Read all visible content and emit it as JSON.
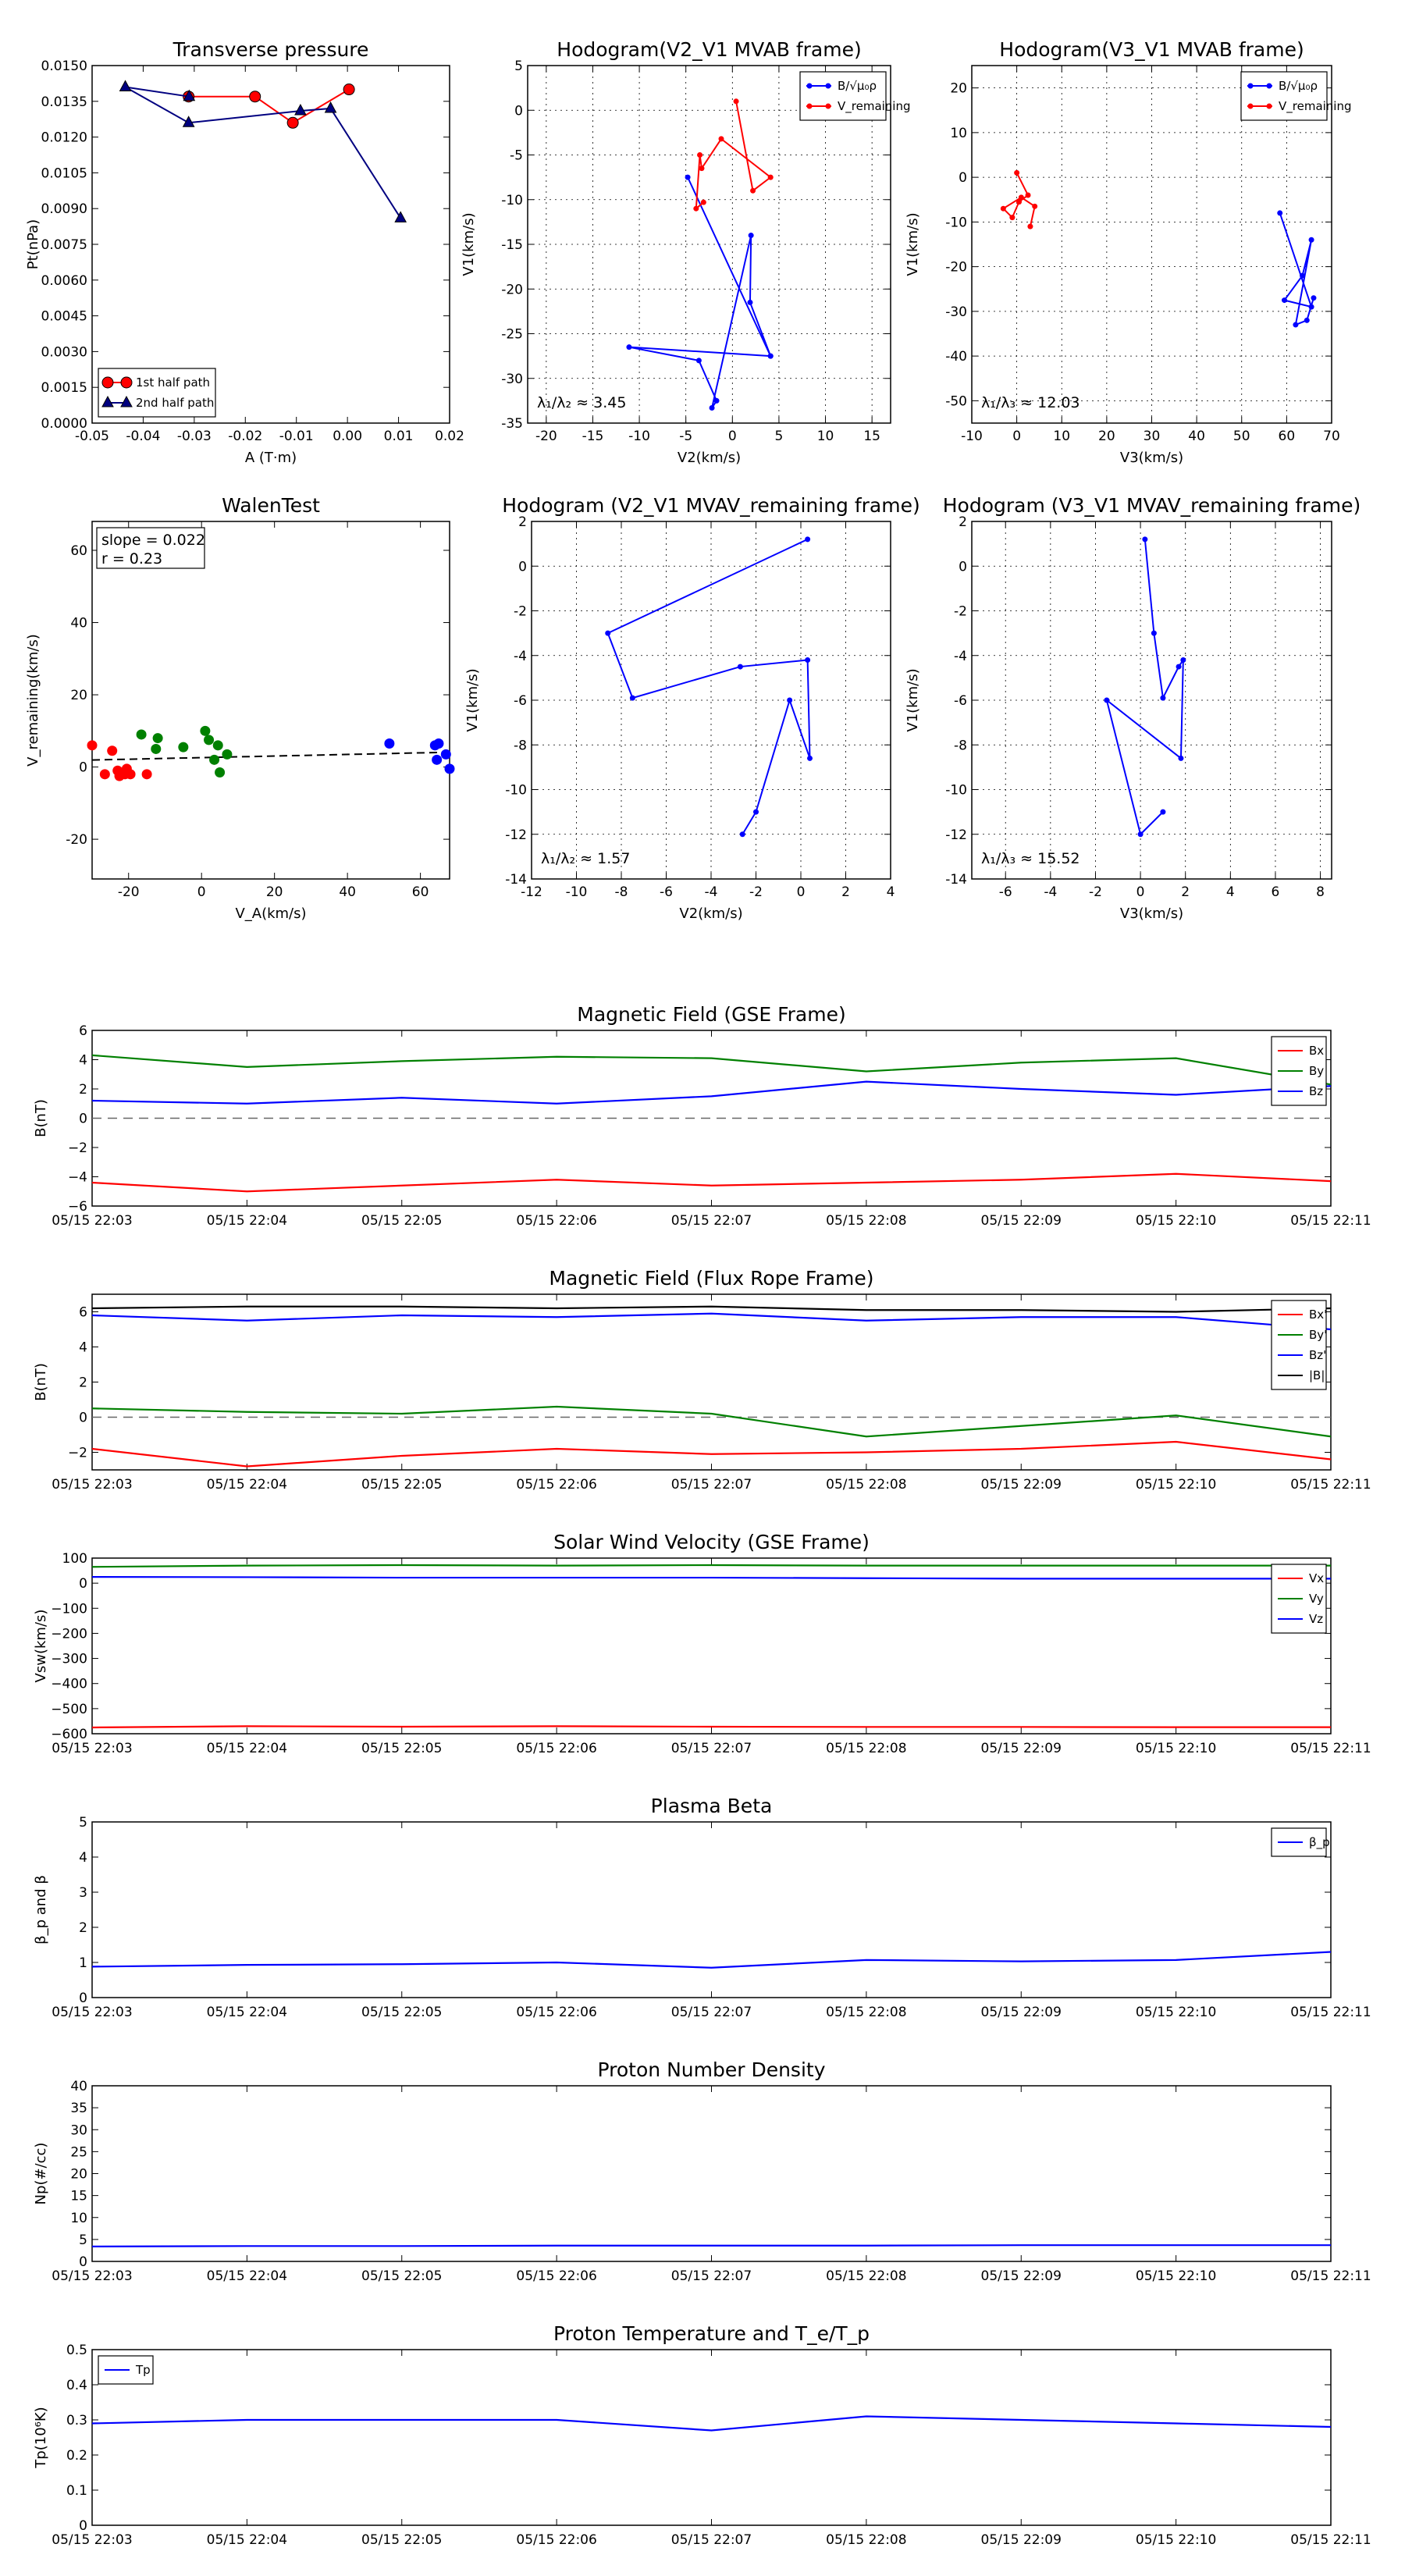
{
  "time_ticks": [
    "05/15 22:03",
    "05/15 22:04",
    "05/15 22:05",
    "05/15 22:06",
    "05/15 22:07",
    "05/15 22:08",
    "05/15 22:09",
    "05/15 22:10",
    "05/15 22:11"
  ],
  "colors": {
    "red": "#ff0000",
    "blue": "#0000ff",
    "green": "#008000",
    "black": "#000000",
    "navy": "#000080"
  },
  "chart_data": [
    {
      "id": "tp",
      "type": "line",
      "title": "Transverse pressure",
      "xlabel": "A (T·m)",
      "ylabel": "Pt(nPa)",
      "xlim": [
        -0.05,
        0.02
      ],
      "ylim": [
        0,
        0.015
      ],
      "xticks": [
        "-0.05",
        "-0.04",
        "-0.03",
        "-0.02",
        "-0.01",
        "0.00",
        "0.01",
        "0.02"
      ],
      "yticks": [
        "0.0000",
        "0.0015",
        "0.0030",
        "0.0045",
        "0.0060",
        "0.0075",
        "0.0090",
        "0.0105",
        "0.0120",
        "0.0135",
        "0.0150"
      ],
      "legend_position": "lower-left",
      "series": [
        {
          "name": "1st half path",
          "color": "red",
          "marker": "circle",
          "x": [
            0.0003,
            -0.0107,
            -0.0181,
            -0.0311
          ],
          "y": [
            0.014,
            0.0126,
            0.0137,
            0.0137
          ]
        },
        {
          "name": "2nd half path",
          "color": "navy",
          "marker": "triangle",
          "x": [
            -0.031,
            -0.0435,
            -0.0311,
            -0.0092,
            -0.0033,
            0.0104
          ],
          "y": [
            0.0137,
            0.0141,
            0.0126,
            0.0131,
            0.0132,
            0.0086
          ]
        }
      ]
    },
    {
      "id": "h1",
      "type": "line",
      "title": "Hodogram(V2_V1 MVAB frame)",
      "xlabel": "V2(km/s)",
      "ylabel": "V1(km/s)",
      "xlim": [
        -22,
        17
      ],
      "ylim": [
        -35,
        5
      ],
      "xticks": [
        "-20",
        "-15",
        "-10",
        "-5",
        "0",
        "5",
        "10",
        "15"
      ],
      "yticks": [
        "-35",
        "-30",
        "-25",
        "-20",
        "-15",
        "-10",
        "-5",
        "0",
        "5"
      ],
      "annotation": "λ₁/λ₂ ≈ 3.45",
      "legend_position": "top-right",
      "series": [
        {
          "name": "B/√μ₀ρ",
          "color": "blue",
          "x": [
            -4.8,
            4.1,
            -11.1,
            -3.6,
            -1.7,
            -2.2,
            2.0,
            1.9,
            4.1
          ],
          "y": [
            -7.5,
            -27.5,
            -26.5,
            -28.0,
            -32.5,
            -33.3,
            -14.0,
            -21.5,
            -27.5
          ]
        },
        {
          "name": "V_remaining",
          "color": "red",
          "x": [
            0.4,
            2.2,
            4.1,
            -1.2,
            -3.3,
            -3.5,
            -3.9,
            -3.1
          ],
          "y": [
            1.0,
            -9.0,
            -7.5,
            -3.2,
            -6.5,
            -5.0,
            -11.0,
            -10.3
          ]
        }
      ]
    },
    {
      "id": "h2",
      "type": "line",
      "title": "Hodogram(V3_V1 MVAB frame)",
      "xlabel": "V3(km/s)",
      "ylabel": "V1(km/s)",
      "xlim": [
        -10,
        70
      ],
      "ylim": [
        -55,
        25
      ],
      "xticks": [
        "-10",
        "0",
        "10",
        "20",
        "30",
        "40",
        "50",
        "60",
        "70"
      ],
      "yticks": [
        "-50",
        "-40",
        "-30",
        "-20",
        "-10",
        "0",
        "10",
        "20"
      ],
      "annotation": "λ₁/λ₃ ≈ 12.03",
      "legend_position": "top-right",
      "series": [
        {
          "name": "B/√μ₀ρ",
          "color": "blue",
          "x": [
            58.5,
            65.5,
            59.5,
            63.5,
            65.5,
            62.0,
            64.5,
            66.0
          ],
          "y": [
            -8.0,
            -29.0,
            -27.5,
            -22.0,
            -14.0,
            -33.0,
            -32.0,
            -27.0
          ]
        },
        {
          "name": "V_remaining",
          "color": "red",
          "x": [
            0.0,
            2.5,
            0.5,
            -1.0,
            -3.0,
            1.0,
            4.0,
            3.0
          ],
          "y": [
            1.0,
            -4.0,
            -5.5,
            -9.0,
            -7.0,
            -4.5,
            -6.5,
            -11.0
          ]
        }
      ]
    },
    {
      "id": "walen",
      "type": "scatter",
      "title": "WalenTest",
      "xlabel": "V_A(km/s)",
      "ylabel": "V_remaining(km/s)",
      "xlim": [
        -30,
        68
      ],
      "ylim": [
        -31,
        68
      ],
      "xticks": [
        "-20",
        "0",
        "20",
        "40",
        "60"
      ],
      "yticks": [
        "-20",
        "0",
        "20",
        "40",
        "60"
      ],
      "annotation_slope": "slope = 0.022",
      "annotation_r": "r = 0.23",
      "fit": {
        "slope": 0.022,
        "intercept": 2.6
      },
      "series": [
        {
          "color": "red",
          "x": [
            -30,
            -26.5,
            -24.5,
            -23.0,
            -22.5,
            -21.0,
            -20.5,
            -19.5,
            -15.0
          ],
          "y": [
            6.0,
            -2.0,
            4.5,
            -1.0,
            -2.5,
            -2.0,
            -0.5,
            -2.0,
            -2.0
          ]
        },
        {
          "color": "green",
          "x": [
            -16.5,
            -12.5,
            -12.0,
            -5.0,
            1.0,
            2.0,
            3.5,
            4.5,
            5.0,
            7.0
          ],
          "y": [
            9.0,
            5.0,
            8.0,
            5.5,
            10.0,
            7.5,
            2.0,
            6.0,
            -1.5,
            3.5
          ]
        },
        {
          "color": "blue",
          "x": [
            51.5,
            64.0,
            64.5,
            65.0,
            67.0,
            68.0
          ],
          "y": [
            6.5,
            6.0,
            2.0,
            6.5,
            3.5,
            -0.5
          ]
        }
      ]
    },
    {
      "id": "h3",
      "type": "line",
      "title": "Hodogram (V2_V1 MVAV_remaining frame)",
      "xlabel": "V2(km/s)",
      "ylabel": "V1(km/s)",
      "xlim": [
        -12,
        4
      ],
      "ylim": [
        -14,
        2
      ],
      "xticks": [
        "-12",
        "-10",
        "-8",
        "-6",
        "-4",
        "-2",
        "0",
        "2",
        "4"
      ],
      "yticks": [
        "-14",
        "-12",
        "-10",
        "-8",
        "-6",
        "-4",
        "-2",
        "0",
        "2"
      ],
      "annotation": "λ₁/λ₂ ≈ 1.57",
      "series": [
        {
          "color": "blue",
          "x": [
            0.3,
            -8.6,
            -7.5,
            -2.7,
            0.3,
            0.4,
            -0.5,
            -2.0,
            -2.6
          ],
          "y": [
            1.2,
            -3.0,
            -5.9,
            -4.5,
            -4.2,
            -8.6,
            -6.0,
            -11.0,
            -12.0
          ]
        }
      ]
    },
    {
      "id": "h4",
      "type": "line",
      "title": "Hodogram (V3_V1 MVAV_remaining frame)",
      "xlabel": "V3(km/s)",
      "ylabel": "V1(km/s)",
      "xlim": [
        -7.5,
        8.5
      ],
      "ylim": [
        -14,
        2
      ],
      "xticks": [
        "-6",
        "-4",
        "-2",
        "0",
        "2",
        "4",
        "6",
        "8"
      ],
      "yticks": [
        "-14",
        "-12",
        "-10",
        "-8",
        "-6",
        "-4",
        "-2",
        "0",
        "2"
      ],
      "annotation": "λ₁/λ₃ ≈ 15.52",
      "series": [
        {
          "color": "blue",
          "x": [
            0.2,
            0.6,
            1.0,
            1.7,
            1.9,
            1.8,
            -1.5,
            0.0,
            1.0
          ],
          "y": [
            1.2,
            -3.0,
            -5.9,
            -4.5,
            -4.2,
            -8.6,
            -6.0,
            -12.0,
            -11.0
          ]
        }
      ]
    },
    {
      "id": "bgse",
      "type": "line",
      "title": "Magnetic Field (GSE Frame)",
      "ylabel": "B(nT)",
      "ylim": [
        -6,
        6
      ],
      "yticks": [
        "−6",
        "−4",
        "−2",
        "0",
        "2",
        "4",
        "6"
      ],
      "legend_position": "top-right",
      "zero_line": true,
      "series": [
        {
          "name": "Bx",
          "color": "red",
          "values": [
            -4.4,
            -5.0,
            -4.6,
            -4.2,
            -4.6,
            -4.4,
            -4.2,
            -3.8,
            -4.3
          ]
        },
        {
          "name": "By",
          "color": "green",
          "values": [
            4.3,
            3.5,
            3.9,
            4.2,
            4.1,
            3.2,
            3.8,
            4.1,
            2.3
          ]
        },
        {
          "name": "Bz",
          "color": "blue",
          "values": [
            1.2,
            1.0,
            1.4,
            1.0,
            1.5,
            2.5,
            2.0,
            1.6,
            2.2
          ]
        }
      ]
    },
    {
      "id": "bfr",
      "type": "line",
      "title": "Magnetic Field (Flux Rope Frame)",
      "ylabel": "B(nT)",
      "ylim": [
        -3,
        7
      ],
      "yticks": [
        "−2",
        "0",
        "2",
        "4",
        "6"
      ],
      "legend_position": "top-right",
      "zero_line": true,
      "series": [
        {
          "name": "Bx'",
          "color": "red",
          "values": [
            -1.8,
            -2.8,
            -2.2,
            -1.8,
            -2.1,
            -2.0,
            -1.8,
            -1.4,
            -2.4
          ]
        },
        {
          "name": "By'",
          "color": "green",
          "values": [
            0.5,
            0.3,
            0.2,
            0.6,
            0.2,
            -1.1,
            -0.5,
            0.1,
            -1.1
          ]
        },
        {
          "name": "Bz'",
          "color": "blue",
          "values": [
            5.8,
            5.5,
            5.8,
            5.7,
            5.9,
            5.5,
            5.7,
            5.7,
            5.0
          ]
        },
        {
          "name": "|B|",
          "color": "black",
          "values": [
            6.2,
            6.3,
            6.3,
            6.2,
            6.3,
            6.1,
            6.1,
            6.0,
            6.2
          ]
        }
      ]
    },
    {
      "id": "vsw",
      "type": "line",
      "title": "Solar Wind Velocity (GSE Frame)",
      "ylabel": "Vsw(km/s)",
      "ylim": [
        -600,
        100
      ],
      "yticks": [
        "−600",
        "−500",
        "−400",
        "−300",
        "−200",
        "−100",
        "0",
        "100"
      ],
      "legend_position": "top-right",
      "series": [
        {
          "name": "Vx",
          "color": "red",
          "values": [
            -575,
            -570,
            -572,
            -570,
            -572,
            -573,
            -573,
            -574,
            -574
          ]
        },
        {
          "name": "Vy",
          "color": "green",
          "values": [
            65,
            70,
            72,
            70,
            72,
            70,
            70,
            70,
            70
          ]
        },
        {
          "name": "Vz",
          "color": "blue",
          "values": [
            25,
            24,
            22,
            22,
            22,
            20,
            18,
            18,
            18
          ]
        }
      ]
    },
    {
      "id": "beta",
      "type": "line",
      "title": "Plasma Beta",
      "ylabel": "β_p and β",
      "ylim": [
        0,
        5
      ],
      "yticks": [
        "0",
        "1",
        "2",
        "3",
        "4",
        "5"
      ],
      "legend_position": "top-right",
      "series": [
        {
          "name": "β_p",
          "color": "blue",
          "values": [
            0.88,
            0.93,
            0.95,
            1.0,
            0.85,
            1.07,
            1.03,
            1.07,
            1.3
          ]
        }
      ]
    },
    {
      "id": "np",
      "type": "line",
      "title": "Proton Number Density",
      "ylabel": "Np(#/cc)",
      "ylim": [
        0,
        40
      ],
      "yticks": [
        "0",
        "5",
        "10",
        "15",
        "20",
        "25",
        "30",
        "35",
        "40"
      ],
      "series": [
        {
          "color": "blue",
          "values": [
            3.4,
            3.5,
            3.5,
            3.6,
            3.6,
            3.6,
            3.7,
            3.7,
            3.7
          ]
        }
      ]
    },
    {
      "id": "tp2",
      "type": "line",
      "title": "Proton Temperature and T_e/T_p",
      "ylabel": "Tp(10⁶K)",
      "ylim": [
        0,
        0.5
      ],
      "yticks": [
        "0",
        "0.1",
        "0.2",
        "0.3",
        "0.4",
        "0.5"
      ],
      "legend_position": "top-left",
      "series": [
        {
          "name": "Tp",
          "color": "blue",
          "values": [
            0.29,
            0.3,
            0.3,
            0.3,
            0.27,
            0.31,
            0.3,
            0.29,
            0.28
          ]
        }
      ]
    }
  ]
}
